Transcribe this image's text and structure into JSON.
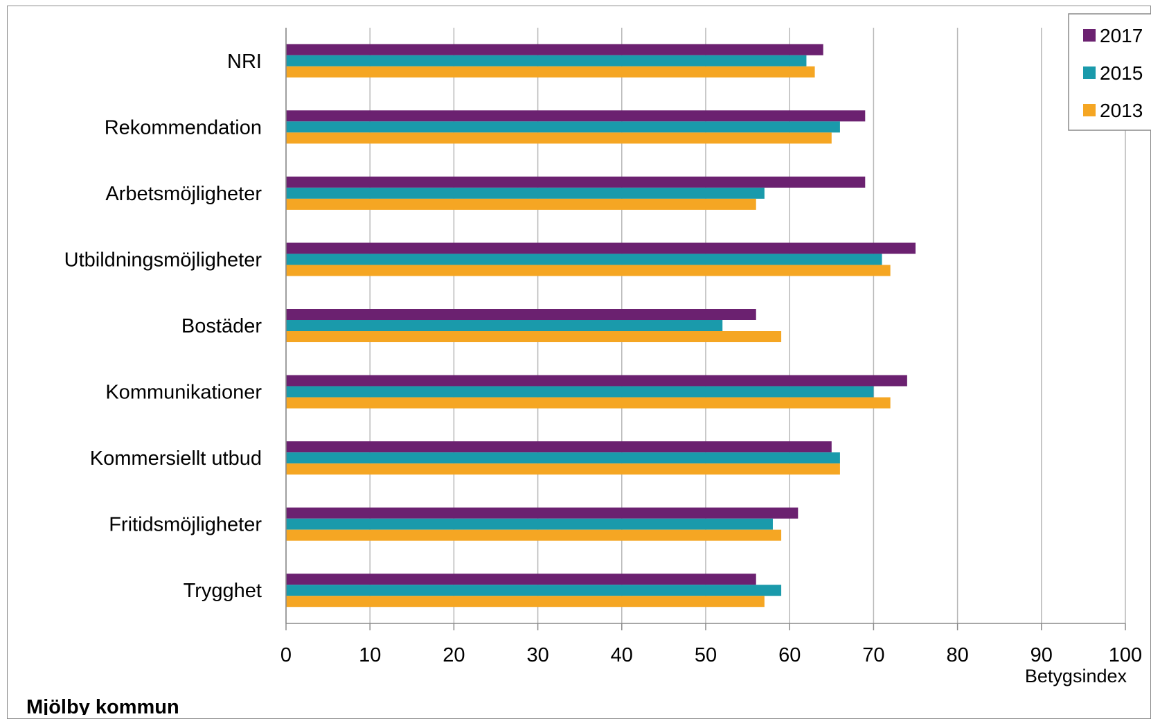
{
  "chart_data": {
    "type": "bar",
    "orientation": "horizontal",
    "categories": [
      "NRI",
      "Rekommendation",
      "Arbetsmöjligheter",
      "Utbildningsmöjligheter",
      "Bostäder",
      "Kommunikationer",
      "Kommersiellt utbud",
      "Fritidsmöjligheter",
      "Trygghet"
    ],
    "series": [
      {
        "name": "2017",
        "color": "#6b2170",
        "values": [
          64,
          69,
          69,
          75,
          56,
          74,
          65,
          61,
          56
        ]
      },
      {
        "name": "2015",
        "color": "#1a9aab",
        "values": [
          62,
          66,
          57,
          71,
          52,
          70,
          66,
          58,
          59
        ]
      },
      {
        "name": "2013",
        "color": "#f5a623",
        "values": [
          63,
          65,
          56,
          72,
          59,
          72,
          66,
          59,
          57
        ]
      }
    ],
    "xlim": [
      0,
      100
    ],
    "xticks": [
      0,
      10,
      20,
      30,
      40,
      50,
      60,
      70,
      80,
      90,
      100
    ],
    "xlabel": "Betygsindex",
    "ylabel": "",
    "grid": true,
    "legend_position": "top-right"
  },
  "footer": {
    "title": "Mjölby kommun"
  }
}
